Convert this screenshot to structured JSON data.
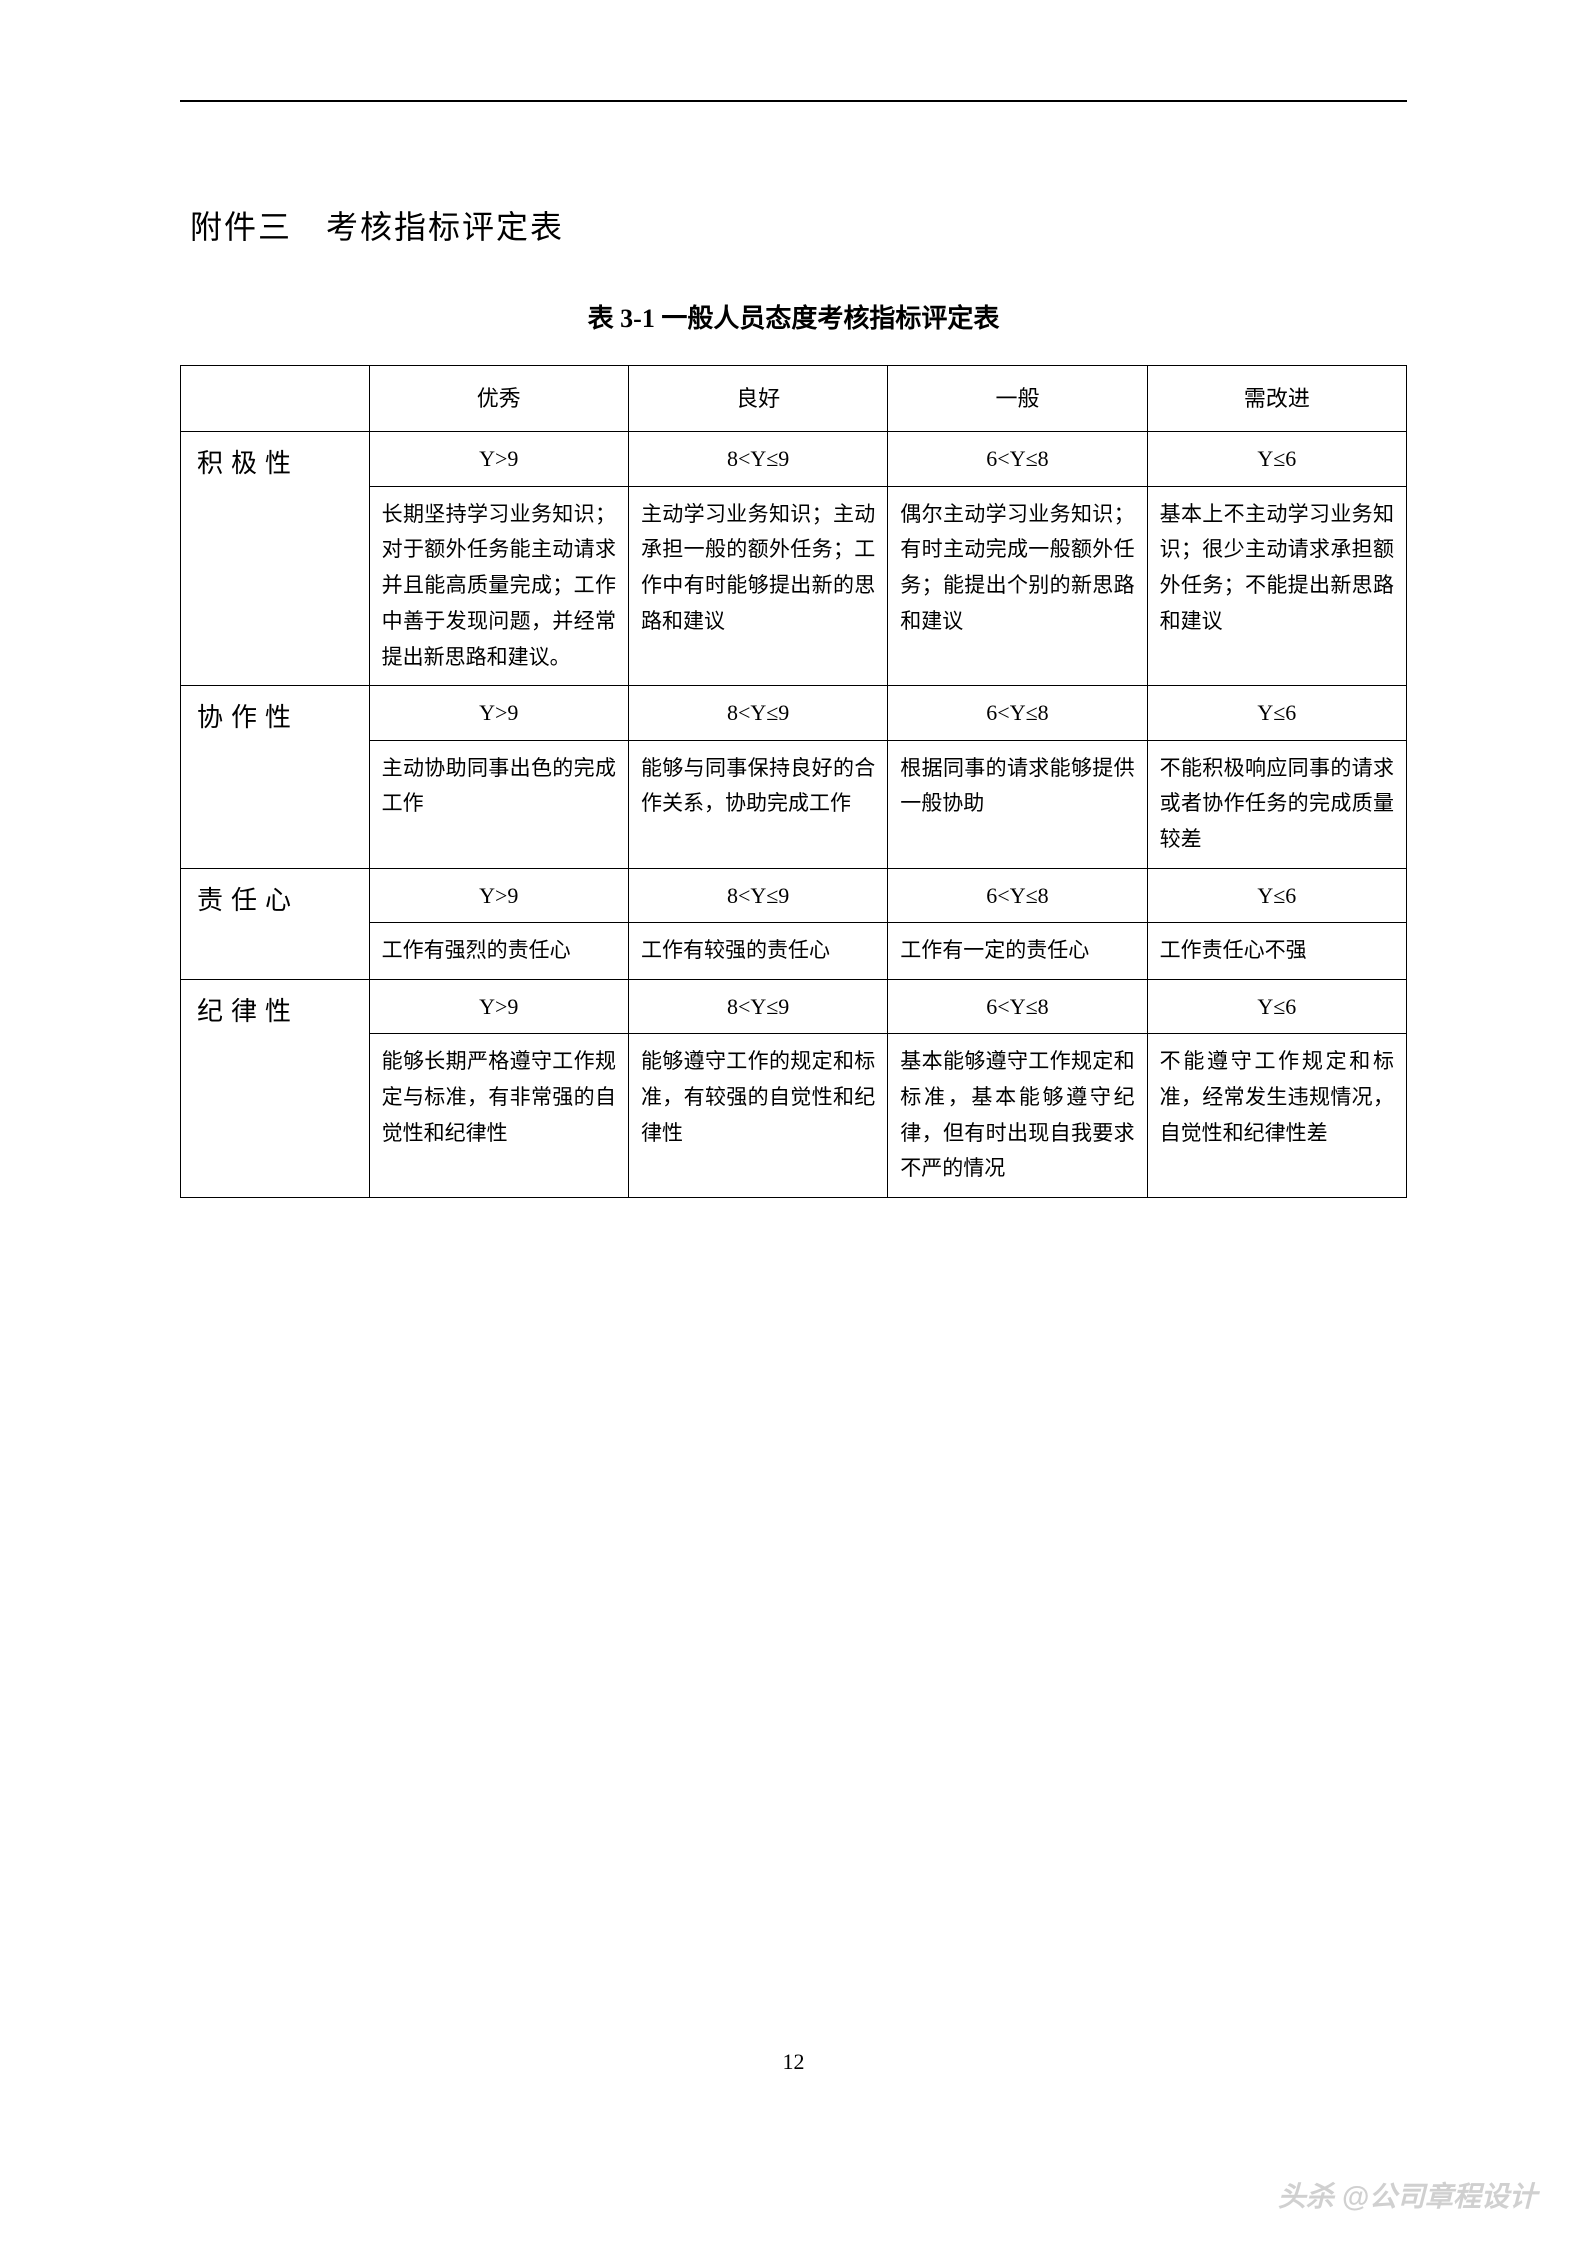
{
  "attachment_title": "附件三　考核指标评定表",
  "table_title": "表 3-1  一般人员态度考核指标评定表",
  "headers": {
    "blank": "",
    "excellent": "优秀",
    "good": "良好",
    "average": "一般",
    "improve": "需改进"
  },
  "rows": [
    {
      "label": "积极性",
      "scores": [
        "Y>9",
        "8<Y≤9",
        "6<Y≤8",
        "Y≤6"
      ],
      "descs": [
        "长期坚持学习业务知识；对于额外任务能主动请求并且能高质量完成；工作中善于发现问题，并经常提出新思路和建议。",
        "主动学习业务知识；主动承担一般的额外任务；工作中有时能够提出新的思路和建议",
        "偶尔主动学习业务知识；有时主动完成一般额外任务；能提出个别的新思路和建议",
        "基本上不主动学习业务知识；很少主动请求承担额外任务；不能提出新思路和建议"
      ]
    },
    {
      "label": "协作性",
      "scores": [
        "Y>9",
        "8<Y≤9",
        "6<Y≤8",
        "Y≤6"
      ],
      "descs": [
        "主动协助同事出色的完成工作",
        "能够与同事保持良好的合作关系，协助完成工作",
        "根据同事的请求能够提供一般协助",
        "不能积极响应同事的请求或者协作任务的完成质量较差"
      ]
    },
    {
      "label": "责任心",
      "scores": [
        "Y>9",
        "8<Y≤9",
        "6<Y≤8",
        "Y≤6"
      ],
      "descs": [
        "工作有强烈的责任心",
        "工作有较强的责任心",
        "工作有一定的责任心",
        "工作责任心不强"
      ]
    },
    {
      "label": "纪律性",
      "scores": [
        "Y>9",
        "8<Y≤9",
        "6<Y≤8",
        "Y≤6"
      ],
      "descs": [
        "能够长期严格遵守工作规定与标准，有非常强的自觉性和纪律性",
        "能够遵守工作的规定和标准，有较强的自觉性和纪律性",
        "基本能够遵守工作规定和标准，基本能够遵守纪律，但有时出现自我要求不严的情况",
        "不能遵守工作规定和标准，经常发生违规情况，自觉性和纪律性差"
      ]
    }
  ],
  "page_number": "12",
  "watermark": "头杀 @公司章程设计"
}
